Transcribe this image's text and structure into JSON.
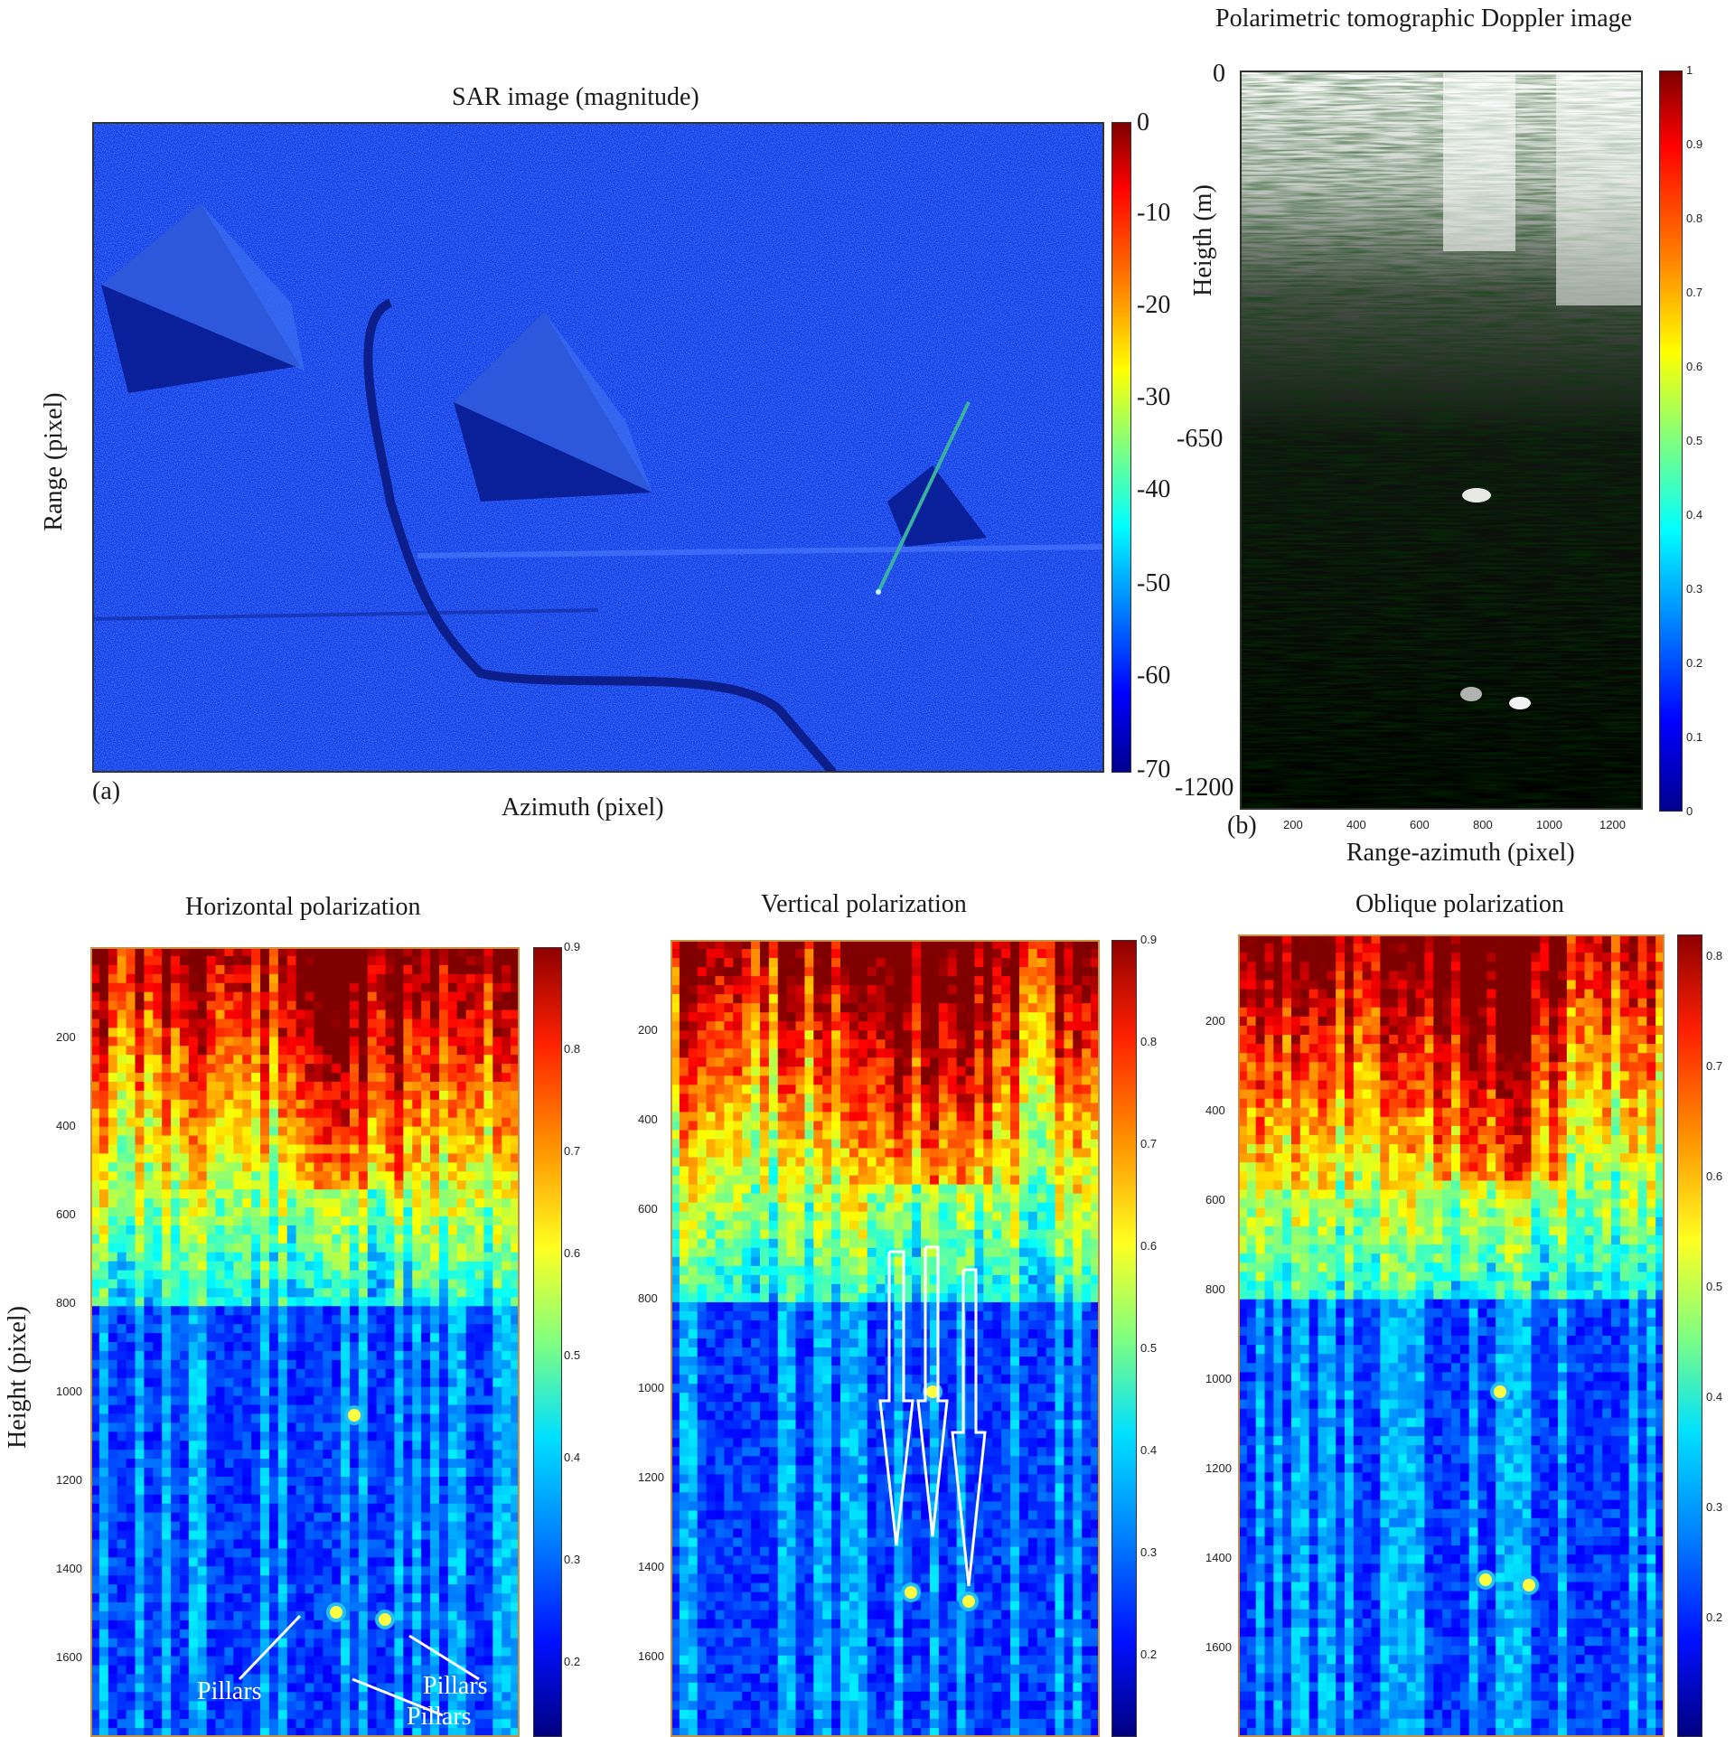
{
  "chart_data": [
    {
      "panel_label": "(a)",
      "type": "heatmap",
      "title": "SAR image (magnitude)",
      "xlabel": "Azimuth (pixel)",
      "ylabel": "Range (pixel)",
      "colorbar_ticks": [
        "0",
        "-10",
        "-20",
        "-30",
        "-40",
        "-50",
        "-60",
        "-70"
      ],
      "colorbar_range": [
        -70,
        0
      ],
      "colormap": "jet"
    },
    {
      "panel_label": "(b)",
      "type": "heatmap",
      "title": "Polarimetric tomographic Doppler image",
      "xlabel": "Range-azimuth (pixel)",
      "ylabel": "Heigth (m)",
      "x_ticks": [
        "200",
        "400",
        "600",
        "800",
        "1000",
        "1200"
      ],
      "y_ticks": [
        "0",
        "-650",
        "-1200"
      ],
      "colorbar_ticks": [
        "1",
        "0.9",
        "0.8",
        "0.7",
        "0.6",
        "0.5",
        "0.4",
        "0.3",
        "0.2",
        "0.1",
        "0"
      ],
      "colorbar_range": [
        0,
        1
      ],
      "colormap": "jet"
    },
    {
      "type": "heatmap",
      "title": "Horizontal polarization",
      "ylabel": "Height (pixel)",
      "y_ticks": [
        "200",
        "400",
        "600",
        "800",
        "1000",
        "1200",
        "1400",
        "1600"
      ],
      "colorbar_ticks": [
        "0.9",
        "0.8",
        "0.7",
        "0.6",
        "0.5",
        "0.4",
        "0.3",
        "0.2"
      ],
      "colorbar_range": [
        0.15,
        0.9
      ],
      "colormap": "jet",
      "annotations": [
        "Pillars",
        "Pillars",
        "Pillars"
      ]
    },
    {
      "type": "heatmap",
      "title": "Vertical polarization",
      "y_ticks": [
        "200",
        "400",
        "600",
        "800",
        "1000",
        "1200",
        "1400",
        "1600"
      ],
      "colorbar_ticks": [
        "0.9",
        "0.8",
        "0.7",
        "0.6",
        "0.5",
        "0.4",
        "0.3",
        "0.2"
      ],
      "colorbar_range": [
        0.15,
        0.9
      ],
      "colormap": "jet"
    },
    {
      "type": "heatmap",
      "title": "Oblique polarization",
      "y_ticks": [
        "200",
        "400",
        "600",
        "800",
        "1000",
        "1200",
        "1400",
        "1600"
      ],
      "colorbar_ticks": [
        "0.8",
        "0.7",
        "0.6",
        "0.5",
        "0.4",
        "0.3",
        "0.2"
      ],
      "colorbar_range": [
        0.15,
        0.85
      ],
      "colormap": "jet"
    }
  ]
}
